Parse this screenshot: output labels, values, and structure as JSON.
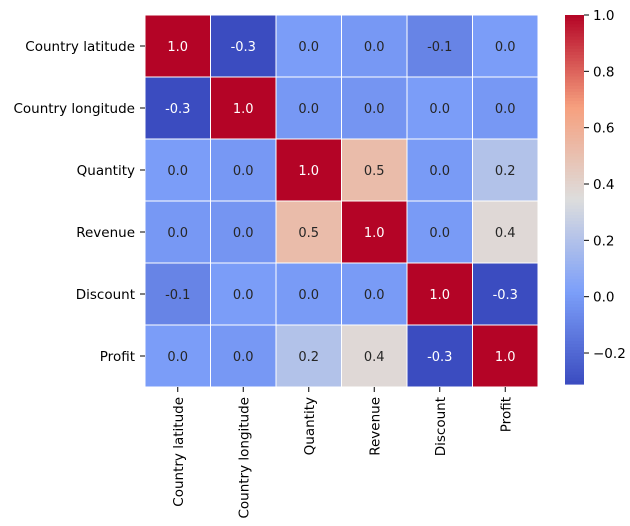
{
  "chart_data": {
    "type": "heatmap",
    "title": "",
    "xlabel": "",
    "ylabel": "",
    "rows": [
      "Country latitude",
      "Country longitude",
      "Quantity",
      "Revenue",
      "Discount",
      "Profit"
    ],
    "columns": [
      "Country latitude",
      "Country longitude",
      "Quantity",
      "Revenue",
      "Discount",
      "Profit"
    ],
    "values": [
      [
        1.0,
        -0.3,
        0.0,
        -0.0,
        -0.1,
        0.0
      ],
      [
        -0.3,
        1.0,
        -0.0,
        -0.0,
        0.0,
        -0.0
      ],
      [
        0.0,
        -0.0,
        1.0,
        0.5,
        0.0,
        0.2
      ],
      [
        -0.0,
        -0.0,
        0.5,
        1.0,
        0.0,
        0.4
      ],
      [
        -0.1,
        0.0,
        0.0,
        0.0,
        1.0,
        -0.3
      ],
      [
        0.0,
        -0.0,
        0.2,
        0.4,
        -0.3,
        1.0
      ]
    ],
    "color_values": [
      [
        1.0,
        -0.31,
        0.01,
        -0.01,
        -0.09,
        0.01
      ],
      [
        -0.31,
        1.0,
        -0.01,
        -0.02,
        0.01,
        -0.01
      ],
      [
        0.01,
        -0.01,
        1.0,
        0.52,
        0.0,
        0.2
      ],
      [
        -0.01,
        -0.02,
        0.52,
        1.0,
        0.0,
        0.37
      ],
      [
        -0.09,
        0.01,
        0.0,
        0.0,
        1.0,
        -0.31
      ],
      [
        0.01,
        -0.01,
        0.2,
        0.37,
        -0.31,
        1.0
      ]
    ],
    "colormap": "coolwarm",
    "vmin": -0.31,
    "vmax": 1.0,
    "colorbar_ticks": [
      "1.0",
      "0.8",
      "0.6",
      "0.4",
      "0.2",
      "0.0",
      "−0.2"
    ],
    "colorbar_tick_values": [
      1.0,
      0.8,
      0.6,
      0.4,
      0.2,
      0.0,
      -0.2
    ]
  }
}
